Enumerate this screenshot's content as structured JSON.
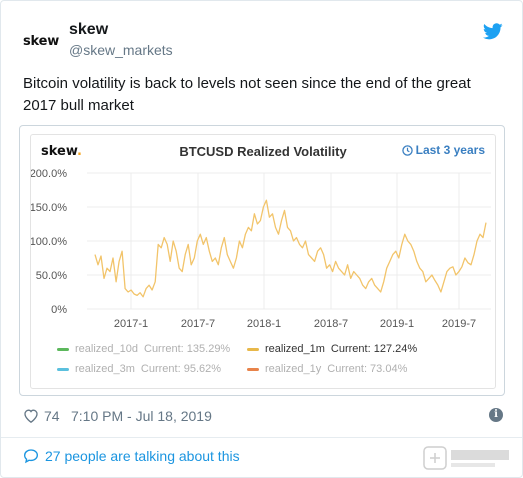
{
  "header": {
    "avatar_text": "skew",
    "name": "skew",
    "handle": "@skew_markets"
  },
  "tweet": {
    "text": "Bitcoin volatility is back to levels not seen since the end of the great 2017 bull market"
  },
  "chart_widget": {
    "logo_text": "skew",
    "logo_dot": ".",
    "range_label": "Last 3 years"
  },
  "meta": {
    "likes": "74",
    "timestamp": "7:10 PM - Jul 18, 2019"
  },
  "footer": {
    "talking_label": "27 people are talking about this"
  },
  "colors": {
    "line": "#f2c46a",
    "text_link": "#1b95e0",
    "twitter_blue": "#1da1f2",
    "realized_10d": "#5cb85c",
    "realized_1m": "#e8b84a",
    "realized_3m": "#5bc0de",
    "realized_1y": "#e8834a"
  },
  "chart_data": {
    "type": "line",
    "title": "BTCUSD Realized Volatility",
    "xlabel": "",
    "ylabel": "",
    "x_ticks": [
      "2017-1",
      "2017-7",
      "2018-1",
      "2018-7",
      "2019-1",
      "2019-7"
    ],
    "y_ticks": [
      "0%",
      "50.0%",
      "100.0%",
      "150.0%",
      "200.0%"
    ],
    "ylim": [
      0,
      200
    ],
    "grid": true,
    "legend_position": "bottom",
    "legend": [
      {
        "name": "realized_10d",
        "current_label": "Current: 135.29%",
        "visible": false
      },
      {
        "name": "realized_1m",
        "current_label": "Current: 127.24%",
        "visible": true
      },
      {
        "name": "realized_3m",
        "current_label": "Current: 95.62%",
        "visible": false
      },
      {
        "name": "realized_1y",
        "current_label": "Current: 73.04%",
        "visible": false
      }
    ],
    "series": [
      {
        "name": "realized_1m",
        "x_start": "2016-07",
        "x_end": "2019-07",
        "values": [
          80,
          65,
          78,
          45,
          60,
          55,
          75,
          40,
          70,
          85,
          30,
          25,
          28,
          22,
          20,
          24,
          18,
          30,
          35,
          28,
          40,
          95,
          90,
          105,
          95,
          70,
          100,
          85,
          60,
          55,
          80,
          95,
          65,
          75,
          100,
          110,
          95,
          105,
          85,
          70,
          75,
          65,
          90,
          105,
          80,
          70,
          60,
          75,
          100,
          90,
          110,
          120,
          115,
          140,
          125,
          130,
          150,
          160,
          135,
          140,
          120,
          110,
          130,
          145,
          120,
          115,
          100,
          105,
          95,
          90,
          100,
          80,
          75,
          70,
          85,
          90,
          80,
          60,
          65,
          55,
          70,
          60,
          55,
          50,
          65,
          45,
          55,
          50,
          45,
          35,
          30,
          40,
          45,
          35,
          30,
          25,
          40,
          60,
          70,
          80,
          85,
          75,
          95,
          110,
          100,
          95,
          85,
          70,
          60,
          55,
          40,
          45,
          50,
          42,
          35,
          25,
          40,
          55,
          60,
          62,
          50,
          55,
          62,
          75,
          68,
          65,
          80,
          100,
          110,
          105,
          127
        ]
      }
    ]
  }
}
